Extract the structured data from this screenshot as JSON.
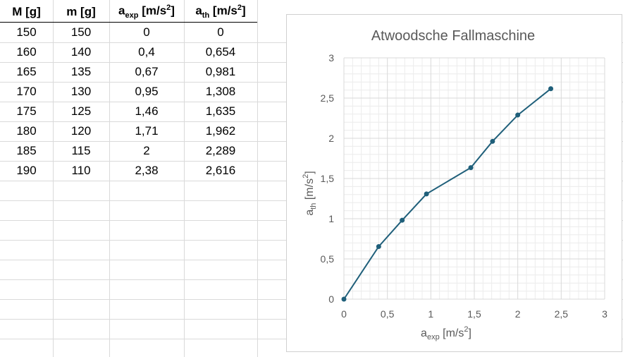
{
  "table": {
    "headers": [
      {
        "main": "M [g]"
      },
      {
        "main": "m [g]"
      },
      {
        "main": "a",
        "sub": "exp",
        "unit": " [m/s",
        "sup": "2",
        "close": "]"
      },
      {
        "main": "a",
        "sub": "th",
        "unit": " [m/s",
        "sup": "2",
        "close": "]"
      }
    ],
    "rows": [
      [
        "150",
        "150",
        "0",
        "0"
      ],
      [
        "160",
        "140",
        "0,4",
        "0,654"
      ],
      [
        "165",
        "135",
        "0,67",
        "0,981"
      ],
      [
        "170",
        "130",
        "0,95",
        "1,308"
      ],
      [
        "175",
        "125",
        "1,46",
        "1,635"
      ],
      [
        "180",
        "120",
        "1,71",
        "1,962"
      ],
      [
        "185",
        "115",
        "2",
        "2,289"
      ],
      [
        "190",
        "110",
        "2,38",
        "2,616"
      ]
    ]
  },
  "chart_data": {
    "type": "line",
    "title": "Atwoodsche Fallmaschine",
    "xlabel": {
      "main": "a",
      "sub": "exp",
      "unit": " [m/s",
      "sup": "2",
      "close": "]"
    },
    "ylabel": {
      "main": "a",
      "sub": "th",
      "unit": " [m/s",
      "sup": "2",
      "close": "]"
    },
    "xlim": [
      0,
      3
    ],
    "ylim": [
      0,
      3
    ],
    "xticks": [
      "0",
      "0,5",
      "1",
      "1,5",
      "2",
      "2,5",
      "3"
    ],
    "yticks": [
      "0",
      "0,5",
      "1",
      "1,5",
      "2",
      "2,5",
      "3"
    ],
    "grid": true,
    "minor_grid": true,
    "series": [
      {
        "x": [
          0,
          0.4,
          0.67,
          0.95,
          1.46,
          1.71,
          2,
          2.38
        ],
        "y": [
          0,
          0.654,
          0.981,
          1.308,
          1.635,
          1.962,
          2.289,
          2.616
        ],
        "color": "#1f5f7a"
      }
    ],
    "colors": {
      "line": "#1f5f7a",
      "major_grid": "#d9d9d9",
      "minor_grid": "#ececec",
      "text": "#595959"
    }
  }
}
